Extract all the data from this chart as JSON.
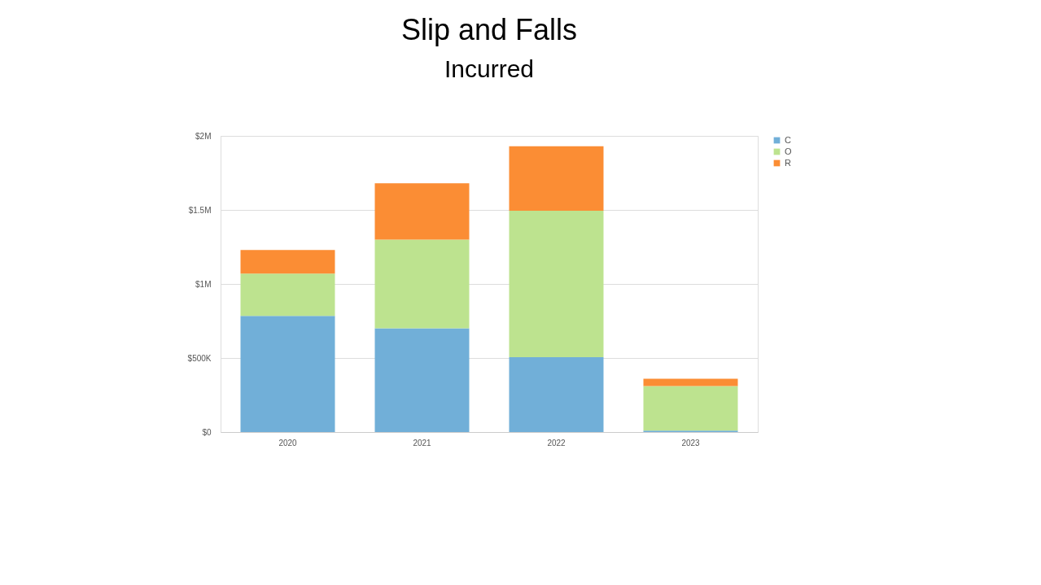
{
  "chart_data": {
    "type": "bar",
    "title": "Slip and Falls",
    "subtitle": "Incurred",
    "categories": [
      "2020",
      "2021",
      "2022",
      "2023"
    ],
    "stacked": true,
    "series": [
      {
        "name": "C",
        "color": "#71afd8",
        "values": [
          785000,
          700000,
          505000,
          10000
        ]
      },
      {
        "name": "O",
        "color": "#bde38f",
        "values": [
          285000,
          600000,
          990000,
          300000
        ]
      },
      {
        "name": "R",
        "color": "#fb8d34",
        "values": [
          160000,
          380000,
          435000,
          50000
        ]
      }
    ],
    "ylim": [
      0,
      2000000
    ],
    "yticks": [
      {
        "value": 0,
        "label": "$0"
      },
      {
        "value": 500000,
        "label": "$500K"
      },
      {
        "value": 1000000,
        "label": "$1M"
      },
      {
        "value": 1500000,
        "label": "$1.5M"
      },
      {
        "value": 2000000,
        "label": "$2M"
      }
    ],
    "grid": "y",
    "legend": "right"
  }
}
